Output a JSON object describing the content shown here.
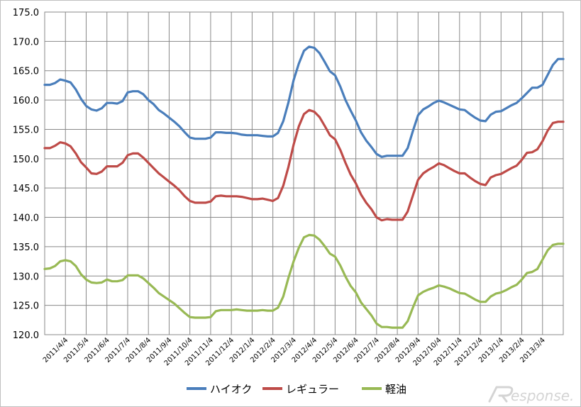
{
  "chart_data": {
    "type": "line",
    "title": "",
    "xlabel": "",
    "ylabel": "",
    "ylim": [
      120,
      175
    ],
    "y_ticks": [
      "120.0",
      "125.0",
      "130.0",
      "135.0",
      "140.0",
      "145.0",
      "150.0",
      "155.0",
      "160.0",
      "165.0",
      "170.0",
      "175.0"
    ],
    "grid": true,
    "legend_position": "bottom",
    "x_tick_labels": [
      "2011/4/4",
      "2011/5/4",
      "2011/6/4",
      "2011/7/4",
      "2011/8/4",
      "2011/9/4",
      "2011/10/4",
      "2011/11/4",
      "2011/12/4",
      "2012/1/4",
      "2012/2/4",
      "2012/3/4",
      "2012/4/4",
      "2012/5/4",
      "2012/6/4",
      "2012/7/4",
      "2012/8/4",
      "2012/9/4",
      "2012/10/4",
      "2012/11/4",
      "2012/12/4",
      "2013/1/4",
      "2013/2/4",
      "2013/3/4"
    ],
    "series": [
      {
        "name": "ハイオク",
        "color": "#4a7ebb",
        "points": [
          [
            0,
            162.6
          ],
          [
            0.25,
            162.6
          ],
          [
            0.5,
            162.9
          ],
          [
            0.75,
            163.5
          ],
          [
            1,
            163.3
          ],
          [
            1.25,
            163.0
          ],
          [
            1.5,
            161.8
          ],
          [
            1.75,
            160.2
          ],
          [
            2,
            159.0
          ],
          [
            2.25,
            158.4
          ],
          [
            2.5,
            158.2
          ],
          [
            2.75,
            158.6
          ],
          [
            3,
            159.5
          ],
          [
            3.25,
            159.5
          ],
          [
            3.5,
            159.4
          ],
          [
            3.75,
            159.8
          ],
          [
            4,
            161.3
          ],
          [
            4.25,
            161.5
          ],
          [
            4.5,
            161.5
          ],
          [
            4.75,
            161.0
          ],
          [
            5,
            160.0
          ],
          [
            5.25,
            159.3
          ],
          [
            5.5,
            158.3
          ],
          [
            5.75,
            157.7
          ],
          [
            6,
            157.0
          ],
          [
            6.25,
            156.3
          ],
          [
            6.5,
            155.5
          ],
          [
            6.75,
            154.5
          ],
          [
            7,
            153.6
          ],
          [
            7.25,
            153.4
          ],
          [
            7.5,
            153.4
          ],
          [
            7.75,
            153.4
          ],
          [
            8,
            153.6
          ],
          [
            8.25,
            154.5
          ],
          [
            8.5,
            154.5
          ],
          [
            8.75,
            154.4
          ],
          [
            9,
            154.4
          ],
          [
            9.25,
            154.3
          ],
          [
            9.5,
            154.1
          ],
          [
            9.75,
            154.0
          ],
          [
            10,
            154.0
          ],
          [
            10.25,
            154.0
          ],
          [
            10.5,
            153.9
          ],
          [
            10.75,
            153.8
          ],
          [
            11,
            153.8
          ],
          [
            11.25,
            154.4
          ],
          [
            11.5,
            156.4
          ],
          [
            11.75,
            159.6
          ],
          [
            12,
            163.4
          ],
          [
            12.25,
            166.2
          ],
          [
            12.5,
            168.4
          ],
          [
            12.75,
            169.1
          ],
          [
            13,
            168.9
          ],
          [
            13.25,
            168.0
          ],
          [
            13.5,
            166.5
          ],
          [
            13.75,
            164.9
          ],
          [
            14,
            164.2
          ],
          [
            14.25,
            162.3
          ],
          [
            14.5,
            160.0
          ],
          [
            14.75,
            158.2
          ],
          [
            15,
            156.5
          ],
          [
            15.25,
            154.5
          ],
          [
            15.5,
            153.1
          ],
          [
            15.75,
            152.0
          ],
          [
            16,
            150.8
          ],
          [
            16.25,
            150.3
          ],
          [
            16.5,
            150.5
          ],
          [
            16.75,
            150.5
          ],
          [
            17,
            150.5
          ],
          [
            17.25,
            150.5
          ],
          [
            17.5,
            151.8
          ],
          [
            17.75,
            154.7
          ],
          [
            18,
            157.4
          ],
          [
            18.25,
            158.4
          ],
          [
            18.5,
            158.9
          ],
          [
            18.75,
            159.5
          ],
          [
            19,
            159.9
          ],
          [
            19.25,
            159.6
          ],
          [
            19.5,
            159.2
          ],
          [
            19.75,
            158.8
          ],
          [
            20,
            158.4
          ],
          [
            20.25,
            158.3
          ],
          [
            20.5,
            157.6
          ],
          [
            20.75,
            157.0
          ],
          [
            21,
            156.5
          ],
          [
            21.25,
            156.4
          ],
          [
            21.5,
            157.5
          ],
          [
            21.75,
            158.0
          ],
          [
            22,
            158.1
          ],
          [
            22.25,
            158.6
          ],
          [
            22.5,
            159.1
          ],
          [
            22.75,
            159.5
          ],
          [
            23,
            160.3
          ],
          [
            23.25,
            161.2
          ],
          [
            23.5,
            162.1
          ],
          [
            23.75,
            162.1
          ],
          [
            24,
            162.6
          ],
          [
            24.25,
            164.3
          ],
          [
            24.5,
            166.0
          ],
          [
            24.75,
            167.0
          ],
          [
            25,
            167.0
          ]
        ]
      },
      {
        "name": "レギュラー",
        "color": "#be4b48",
        "points": [
          [
            0,
            151.8
          ],
          [
            0.25,
            151.8
          ],
          [
            0.5,
            152.2
          ],
          [
            0.75,
            152.8
          ],
          [
            1,
            152.6
          ],
          [
            1.25,
            152.1
          ],
          [
            1.5,
            150.9
          ],
          [
            1.75,
            149.4
          ],
          [
            2,
            148.5
          ],
          [
            2.25,
            147.5
          ],
          [
            2.5,
            147.4
          ],
          [
            2.75,
            147.8
          ],
          [
            3,
            148.7
          ],
          [
            3.25,
            148.7
          ],
          [
            3.5,
            148.7
          ],
          [
            3.75,
            149.3
          ],
          [
            4,
            150.6
          ],
          [
            4.25,
            150.9
          ],
          [
            4.5,
            150.9
          ],
          [
            4.75,
            150.2
          ],
          [
            5,
            149.3
          ],
          [
            5.25,
            148.4
          ],
          [
            5.5,
            147.5
          ],
          [
            5.75,
            146.8
          ],
          [
            6,
            146.1
          ],
          [
            6.25,
            145.4
          ],
          [
            6.5,
            144.6
          ],
          [
            6.75,
            143.6
          ],
          [
            7,
            142.8
          ],
          [
            7.25,
            142.5
          ],
          [
            7.5,
            142.5
          ],
          [
            7.75,
            142.5
          ],
          [
            8,
            142.7
          ],
          [
            8.25,
            143.6
          ],
          [
            8.5,
            143.7
          ],
          [
            8.75,
            143.6
          ],
          [
            9,
            143.6
          ],
          [
            9.25,
            143.6
          ],
          [
            9.5,
            143.5
          ],
          [
            9.75,
            143.3
          ],
          [
            10,
            143.1
          ],
          [
            10.25,
            143.1
          ],
          [
            10.5,
            143.2
          ],
          [
            10.75,
            143.0
          ],
          [
            11,
            142.8
          ],
          [
            11.25,
            143.3
          ],
          [
            11.5,
            145.4
          ],
          [
            11.75,
            148.6
          ],
          [
            12,
            152.4
          ],
          [
            12.25,
            155.5
          ],
          [
            12.5,
            157.6
          ],
          [
            12.75,
            158.3
          ],
          [
            13,
            158.0
          ],
          [
            13.25,
            157.1
          ],
          [
            13.5,
            155.6
          ],
          [
            13.75,
            154.0
          ],
          [
            14,
            153.3
          ],
          [
            14.25,
            151.5
          ],
          [
            14.5,
            149.3
          ],
          [
            14.75,
            147.3
          ],
          [
            15,
            145.8
          ],
          [
            15.25,
            143.9
          ],
          [
            15.5,
            142.5
          ],
          [
            15.75,
            141.4
          ],
          [
            16,
            140.0
          ],
          [
            16.25,
            139.5
          ],
          [
            16.5,
            139.7
          ],
          [
            16.75,
            139.6
          ],
          [
            17,
            139.6
          ],
          [
            17.25,
            139.6
          ],
          [
            17.5,
            141.0
          ],
          [
            17.75,
            143.7
          ],
          [
            18,
            146.4
          ],
          [
            18.25,
            147.5
          ],
          [
            18.5,
            148.1
          ],
          [
            18.75,
            148.6
          ],
          [
            19,
            149.2
          ],
          [
            19.25,
            148.9
          ],
          [
            19.5,
            148.4
          ],
          [
            19.75,
            147.9
          ],
          [
            20,
            147.5
          ],
          [
            20.25,
            147.5
          ],
          [
            20.5,
            146.8
          ],
          [
            20.75,
            146.2
          ],
          [
            21,
            145.7
          ],
          [
            21.25,
            145.5
          ],
          [
            21.5,
            146.8
          ],
          [
            21.75,
            147.2
          ],
          [
            22,
            147.4
          ],
          [
            22.25,
            147.9
          ],
          [
            22.5,
            148.4
          ],
          [
            22.75,
            148.8
          ],
          [
            23,
            149.8
          ],
          [
            23.25,
            151.0
          ],
          [
            23.5,
            151.1
          ],
          [
            23.75,
            151.6
          ],
          [
            24,
            153.0
          ],
          [
            24.25,
            154.8
          ],
          [
            24.5,
            156.1
          ],
          [
            24.75,
            156.3
          ],
          [
            25,
            156.3
          ]
        ]
      },
      {
        "name": "軽油",
        "color": "#98b954",
        "points": [
          [
            0,
            131.2
          ],
          [
            0.25,
            131.3
          ],
          [
            0.5,
            131.7
          ],
          [
            0.75,
            132.5
          ],
          [
            1,
            132.7
          ],
          [
            1.25,
            132.5
          ],
          [
            1.5,
            131.7
          ],
          [
            1.75,
            130.3
          ],
          [
            2,
            129.4
          ],
          [
            2.25,
            128.9
          ],
          [
            2.5,
            128.8
          ],
          [
            2.75,
            128.9
          ],
          [
            3,
            129.4
          ],
          [
            3.25,
            129.1
          ],
          [
            3.5,
            129.1
          ],
          [
            3.75,
            129.3
          ],
          [
            4,
            130.1
          ],
          [
            4.25,
            130.1
          ],
          [
            4.5,
            130.1
          ],
          [
            4.75,
            129.6
          ],
          [
            5,
            128.8
          ],
          [
            5.25,
            128.0
          ],
          [
            5.5,
            127.1
          ],
          [
            5.75,
            126.5
          ],
          [
            6,
            125.9
          ],
          [
            6.25,
            125.3
          ],
          [
            6.5,
            124.5
          ],
          [
            6.75,
            123.7
          ],
          [
            7,
            123.0
          ],
          [
            7.25,
            122.9
          ],
          [
            7.5,
            122.9
          ],
          [
            7.75,
            122.9
          ],
          [
            8,
            123.0
          ],
          [
            8.25,
            124.0
          ],
          [
            8.5,
            124.2
          ],
          [
            8.75,
            124.2
          ],
          [
            9,
            124.2
          ],
          [
            9.25,
            124.3
          ],
          [
            9.5,
            124.2
          ],
          [
            9.75,
            124.1
          ],
          [
            10,
            124.1
          ],
          [
            10.25,
            124.1
          ],
          [
            10.5,
            124.2
          ],
          [
            10.75,
            124.1
          ],
          [
            11,
            124.1
          ],
          [
            11.25,
            124.6
          ],
          [
            11.5,
            126.5
          ],
          [
            11.75,
            129.7
          ],
          [
            12,
            132.5
          ],
          [
            12.25,
            134.8
          ],
          [
            12.5,
            136.6
          ],
          [
            12.75,
            137.0
          ],
          [
            13,
            136.9
          ],
          [
            13.25,
            136.2
          ],
          [
            13.5,
            135.1
          ],
          [
            13.75,
            133.8
          ],
          [
            14,
            133.3
          ],
          [
            14.25,
            131.8
          ],
          [
            14.5,
            129.9
          ],
          [
            14.75,
            128.3
          ],
          [
            15,
            127.2
          ],
          [
            15.25,
            125.5
          ],
          [
            15.5,
            124.4
          ],
          [
            15.75,
            123.3
          ],
          [
            16,
            121.9
          ],
          [
            16.25,
            121.3
          ],
          [
            16.5,
            121.3
          ],
          [
            16.75,
            121.2
          ],
          [
            17,
            121.2
          ],
          [
            17.25,
            121.2
          ],
          [
            17.5,
            122.3
          ],
          [
            17.75,
            124.6
          ],
          [
            18,
            126.7
          ],
          [
            18.25,
            127.3
          ],
          [
            18.5,
            127.7
          ],
          [
            18.75,
            128.0
          ],
          [
            19,
            128.4
          ],
          [
            19.25,
            128.2
          ],
          [
            19.5,
            127.9
          ],
          [
            19.75,
            127.5
          ],
          [
            20,
            127.1
          ],
          [
            20.25,
            127.0
          ],
          [
            20.5,
            126.5
          ],
          [
            20.75,
            126.0
          ],
          [
            21,
            125.6
          ],
          [
            21.25,
            125.6
          ],
          [
            21.5,
            126.5
          ],
          [
            21.75,
            127.0
          ],
          [
            22,
            127.2
          ],
          [
            22.25,
            127.6
          ],
          [
            22.5,
            128.1
          ],
          [
            22.75,
            128.5
          ],
          [
            23,
            129.4
          ],
          [
            23.25,
            130.5
          ],
          [
            23.5,
            130.7
          ],
          [
            23.75,
            131.2
          ],
          [
            24,
            132.8
          ],
          [
            24.25,
            134.4
          ],
          [
            24.5,
            135.3
          ],
          [
            24.75,
            135.5
          ],
          [
            25,
            135.5
          ]
        ]
      }
    ]
  },
  "watermark": {
    "text": "esponse.",
    "color": "#d4d4d4"
  }
}
